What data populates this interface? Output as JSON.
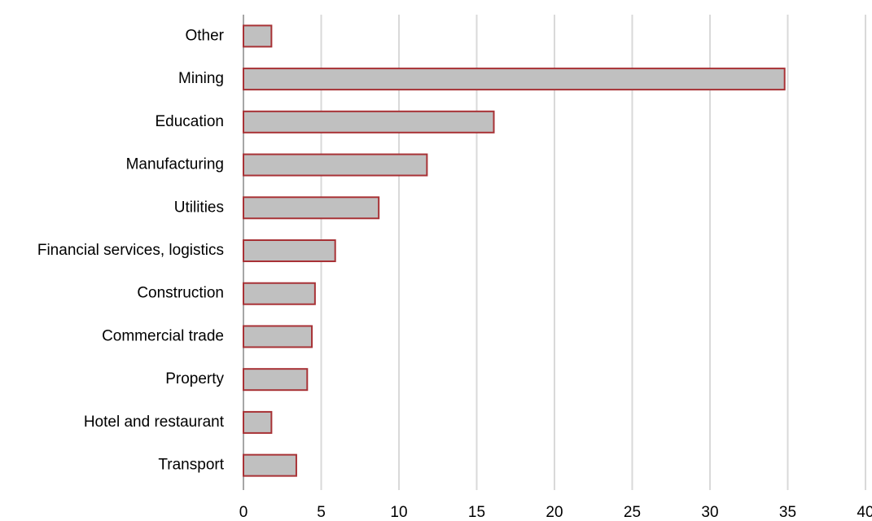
{
  "chart_data": {
    "type": "barh",
    "categories": [
      "Other",
      "Mining",
      "Education",
      "Manufacturing",
      "Utilities",
      "Financial services, logistics",
      "Construction",
      "Commercial trade",
      "Property",
      "Hotel and restaurant",
      "Transport"
    ],
    "values": [
      1.8,
      34.8,
      16.1,
      11.8,
      8.7,
      5.9,
      4.6,
      4.4,
      4.1,
      1.8,
      3.4
    ],
    "color": "#c0c0c0",
    "edgecolor": "#a83236",
    "xlim": [
      0,
      40
    ],
    "xticks": [
      0,
      5,
      10,
      15,
      20,
      25,
      30,
      35,
      40
    ],
    "grid": true
  }
}
